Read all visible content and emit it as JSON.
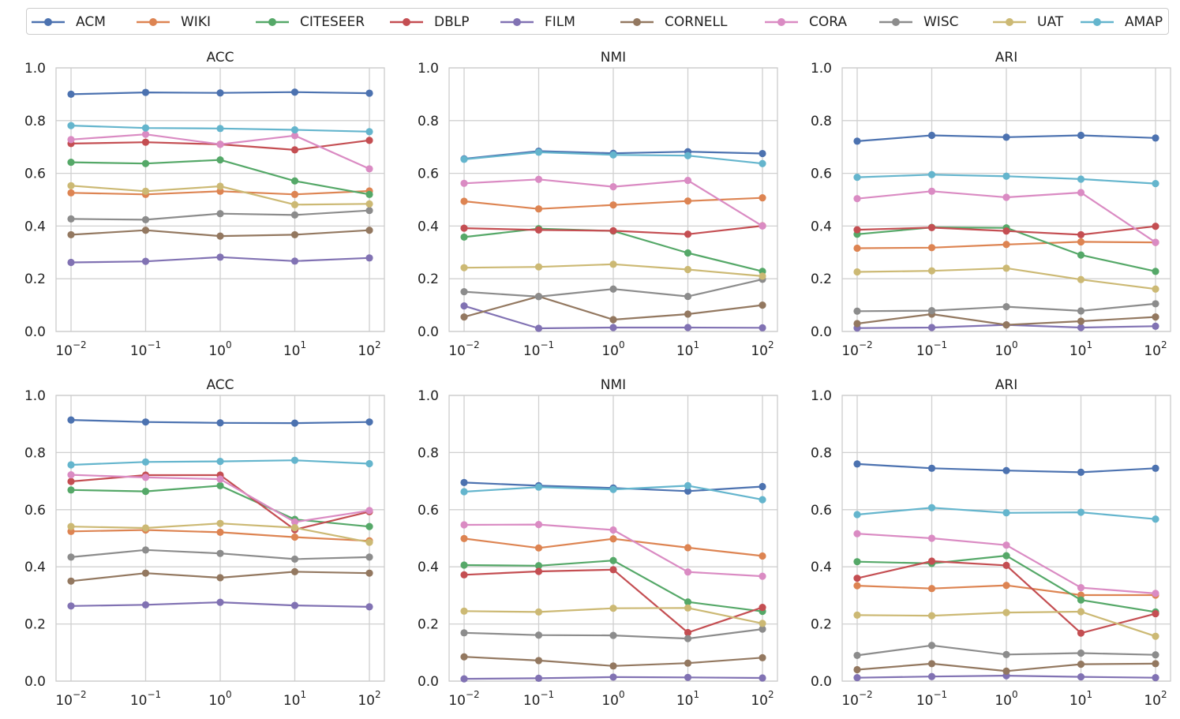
{
  "legend": [
    {
      "name": "ACM",
      "color": "#4c72b0"
    },
    {
      "name": "WIKI",
      "color": "#dd8452"
    },
    {
      "name": "CITESEER",
      "color": "#55a868"
    },
    {
      "name": "DBLP",
      "color": "#c44e52"
    },
    {
      "name": "FILM",
      "color": "#8172b3"
    },
    {
      "name": "CORNELL",
      "color": "#937860"
    },
    {
      "name": "CORA",
      "color": "#da8bc3"
    },
    {
      "name": "WISC",
      "color": "#8c8c8c"
    },
    {
      "name": "UAT",
      "color": "#ccb974"
    },
    {
      "name": "AMAP",
      "color": "#64b5cd"
    }
  ],
  "chart_data": [
    {
      "type": "line",
      "title": "ACC",
      "xscale": "log",
      "x": [
        0.01,
        0.1,
        1,
        10,
        100
      ],
      "xtick_labels": [
        {
          "base": "10",
          "exp": "−2"
        },
        {
          "base": "10",
          "exp": "−1"
        },
        {
          "base": "10",
          "exp": "0"
        },
        {
          "base": "10",
          "exp": "1"
        },
        {
          "base": "10",
          "exp": "2"
        }
      ],
      "ylim": [
        0,
        1
      ],
      "yticks": [
        "0.0",
        "0.2",
        "0.4",
        "0.6",
        "0.8",
        "1.0"
      ],
      "grid": true,
      "series": [
        {
          "name": "ACM",
          "values": [
            0.9,
            0.907,
            0.905,
            0.908,
            0.904
          ]
        },
        {
          "name": "WIKI",
          "values": [
            0.526,
            0.52,
            0.532,
            0.52,
            0.533
          ]
        },
        {
          "name": "CITESEER",
          "values": [
            0.642,
            0.637,
            0.651,
            0.571,
            0.52
          ]
        },
        {
          "name": "DBLP",
          "values": [
            0.713,
            0.718,
            0.71,
            0.689,
            0.725
          ]
        },
        {
          "name": "FILM",
          "values": [
            0.262,
            0.266,
            0.282,
            0.267,
            0.279
          ]
        },
        {
          "name": "CORNELL",
          "values": [
            0.367,
            0.384,
            0.362,
            0.367,
            0.384
          ]
        },
        {
          "name": "CORA",
          "values": [
            0.728,
            0.748,
            0.71,
            0.743,
            0.617
          ]
        },
        {
          "name": "WISC",
          "values": [
            0.427,
            0.424,
            0.447,
            0.442,
            0.459
          ]
        },
        {
          "name": "UAT",
          "values": [
            0.553,
            0.532,
            0.551,
            0.481,
            0.484
          ]
        },
        {
          "name": "AMAP",
          "values": [
            0.781,
            0.772,
            0.77,
            0.765,
            0.758
          ]
        }
      ]
    },
    {
      "type": "line",
      "title": "NMI",
      "xscale": "log",
      "x": [
        0.01,
        0.1,
        1,
        10,
        100
      ],
      "xtick_labels": [
        {
          "base": "10",
          "exp": "−2"
        },
        {
          "base": "10",
          "exp": "−1"
        },
        {
          "base": "10",
          "exp": "0"
        },
        {
          "base": "10",
          "exp": "1"
        },
        {
          "base": "10",
          "exp": "2"
        }
      ],
      "ylim": [
        0,
        1
      ],
      "yticks": [
        "0.0",
        "0.2",
        "0.4",
        "0.6",
        "0.8",
        "1.0"
      ],
      "grid": true,
      "series": [
        {
          "name": "ACM",
          "values": [
            0.655,
            0.684,
            0.676,
            0.682,
            0.675
          ]
        },
        {
          "name": "WIKI",
          "values": [
            0.494,
            0.465,
            0.48,
            0.495,
            0.507
          ]
        },
        {
          "name": "CITESEER",
          "values": [
            0.358,
            0.39,
            0.381,
            0.298,
            0.228
          ]
        },
        {
          "name": "DBLP",
          "values": [
            0.392,
            0.385,
            0.382,
            0.369,
            0.401
          ]
        },
        {
          "name": "FILM",
          "values": [
            0.097,
            0.012,
            0.015,
            0.015,
            0.014
          ]
        },
        {
          "name": "CORNELL",
          "values": [
            0.055,
            0.133,
            0.045,
            0.066,
            0.1
          ]
        },
        {
          "name": "CORA",
          "values": [
            0.562,
            0.577,
            0.549,
            0.573,
            0.4
          ]
        },
        {
          "name": "WISC",
          "values": [
            0.151,
            0.132,
            0.161,
            0.133,
            0.198
          ]
        },
        {
          "name": "UAT",
          "values": [
            0.242,
            0.245,
            0.255,
            0.235,
            0.21
          ]
        },
        {
          "name": "AMAP",
          "values": [
            0.653,
            0.68,
            0.67,
            0.667,
            0.637
          ]
        }
      ]
    },
    {
      "type": "line",
      "title": "ARI",
      "xscale": "log",
      "x": [
        0.01,
        0.1,
        1,
        10,
        100
      ],
      "xtick_labels": [
        {
          "base": "10",
          "exp": "−2"
        },
        {
          "base": "10",
          "exp": "−1"
        },
        {
          "base": "10",
          "exp": "0"
        },
        {
          "base": "10",
          "exp": "1"
        },
        {
          "base": "10",
          "exp": "2"
        }
      ],
      "ylim": [
        0,
        1
      ],
      "yticks": [
        "0.0",
        "0.2",
        "0.4",
        "0.6",
        "0.8",
        "1.0"
      ],
      "grid": true,
      "series": [
        {
          "name": "ACM",
          "values": [
            0.722,
            0.744,
            0.737,
            0.744,
            0.734
          ]
        },
        {
          "name": "WIKI",
          "values": [
            0.316,
            0.318,
            0.33,
            0.34,
            0.338
          ]
        },
        {
          "name": "CITESEER",
          "values": [
            0.369,
            0.395,
            0.393,
            0.29,
            0.228
          ]
        },
        {
          "name": "DBLP",
          "values": [
            0.386,
            0.394,
            0.381,
            0.367,
            0.399
          ]
        },
        {
          "name": "FILM",
          "values": [
            0.013,
            0.015,
            0.025,
            0.015,
            0.02
          ]
        },
        {
          "name": "CORNELL",
          "values": [
            0.03,
            0.066,
            0.025,
            0.039,
            0.055
          ]
        },
        {
          "name": "CORA",
          "values": [
            0.504,
            0.532,
            0.509,
            0.527,
            0.338
          ]
        },
        {
          "name": "WISC",
          "values": [
            0.077,
            0.079,
            0.094,
            0.078,
            0.105
          ]
        },
        {
          "name": "UAT",
          "values": [
            0.226,
            0.23,
            0.24,
            0.197,
            0.161
          ]
        },
        {
          "name": "AMAP",
          "values": [
            0.585,
            0.595,
            0.589,
            0.578,
            0.561
          ]
        }
      ]
    },
    {
      "type": "line",
      "title": "ACC",
      "xscale": "log",
      "x": [
        0.01,
        0.1,
        1,
        10,
        100
      ],
      "xtick_labels": [
        {
          "base": "10",
          "exp": "−2"
        },
        {
          "base": "10",
          "exp": "−1"
        },
        {
          "base": "10",
          "exp": "0"
        },
        {
          "base": "10",
          "exp": "1"
        },
        {
          "base": "10",
          "exp": "2"
        }
      ],
      "ylim": [
        0,
        1
      ],
      "yticks": [
        "0.0",
        "0.2",
        "0.4",
        "0.6",
        "0.8",
        "1.0"
      ],
      "grid": true,
      "series": [
        {
          "name": "ACM",
          "values": [
            0.914,
            0.907,
            0.904,
            0.903,
            0.907
          ]
        },
        {
          "name": "WIKI",
          "values": [
            0.524,
            0.529,
            0.521,
            0.504,
            0.491
          ]
        },
        {
          "name": "CITESEER",
          "values": [
            0.669,
            0.664,
            0.684,
            0.566,
            0.541
          ]
        },
        {
          "name": "DBLP",
          "values": [
            0.699,
            0.721,
            0.721,
            0.53,
            0.593
          ]
        },
        {
          "name": "FILM",
          "values": [
            0.263,
            0.267,
            0.276,
            0.265,
            0.26
          ]
        },
        {
          "name": "CORNELL",
          "values": [
            0.35,
            0.378,
            0.362,
            0.383,
            0.378
          ]
        },
        {
          "name": "CORA",
          "values": [
            0.722,
            0.713,
            0.707,
            0.557,
            0.597
          ]
        },
        {
          "name": "WISC",
          "values": [
            0.434,
            0.459,
            0.447,
            0.427,
            0.434
          ]
        },
        {
          "name": "UAT",
          "values": [
            0.541,
            0.536,
            0.552,
            0.537,
            0.486
          ]
        },
        {
          "name": "AMAP",
          "values": [
            0.757,
            0.767,
            0.769,
            0.773,
            0.761
          ]
        }
      ]
    },
    {
      "type": "line",
      "title": "NMI",
      "xscale": "log",
      "x": [
        0.01,
        0.1,
        1,
        10,
        100
      ],
      "xtick_labels": [
        {
          "base": "10",
          "exp": "−2"
        },
        {
          "base": "10",
          "exp": "−1"
        },
        {
          "base": "10",
          "exp": "0"
        },
        {
          "base": "10",
          "exp": "1"
        },
        {
          "base": "10",
          "exp": "2"
        }
      ],
      "ylim": [
        0,
        1
      ],
      "yticks": [
        "0.0",
        "0.2",
        "0.4",
        "0.6",
        "0.8",
        "1.0"
      ],
      "grid": true,
      "series": [
        {
          "name": "ACM",
          "values": [
            0.695,
            0.684,
            0.676,
            0.665,
            0.681
          ]
        },
        {
          "name": "WIKI",
          "values": [
            0.499,
            0.466,
            0.498,
            0.467,
            0.438
          ]
        },
        {
          "name": "CITESEER",
          "values": [
            0.406,
            0.404,
            0.422,
            0.277,
            0.244
          ]
        },
        {
          "name": "DBLP",
          "values": [
            0.372,
            0.384,
            0.39,
            0.17,
            0.258
          ]
        },
        {
          "name": "FILM",
          "values": [
            0.008,
            0.01,
            0.014,
            0.013,
            0.011
          ]
        },
        {
          "name": "CORNELL",
          "values": [
            0.085,
            0.072,
            0.053,
            0.063,
            0.082
          ]
        },
        {
          "name": "CORA",
          "values": [
            0.547,
            0.548,
            0.529,
            0.382,
            0.367
          ]
        },
        {
          "name": "WISC",
          "values": [
            0.169,
            0.161,
            0.16,
            0.149,
            0.182
          ]
        },
        {
          "name": "UAT",
          "values": [
            0.245,
            0.242,
            0.255,
            0.256,
            0.202
          ]
        },
        {
          "name": "AMAP",
          "values": [
            0.663,
            0.679,
            0.671,
            0.684,
            0.635
          ]
        }
      ]
    },
    {
      "type": "line",
      "title": "ARI",
      "xscale": "log",
      "x": [
        0.01,
        0.1,
        1,
        10,
        100
      ],
      "xtick_labels": [
        {
          "base": "10",
          "exp": "−2"
        },
        {
          "base": "10",
          "exp": "−1"
        },
        {
          "base": "10",
          "exp": "0"
        },
        {
          "base": "10",
          "exp": "1"
        },
        {
          "base": "10",
          "exp": "2"
        }
      ],
      "ylim": [
        0,
        1
      ],
      "yticks": [
        "0.0",
        "0.2",
        "0.4",
        "0.6",
        "0.8",
        "1.0"
      ],
      "grid": true,
      "series": [
        {
          "name": "ACM",
          "values": [
            0.76,
            0.745,
            0.737,
            0.731,
            0.745
          ]
        },
        {
          "name": "WIKI",
          "values": [
            0.334,
            0.324,
            0.335,
            0.301,
            0.301
          ]
        },
        {
          "name": "CITESEER",
          "values": [
            0.418,
            0.412,
            0.439,
            0.284,
            0.242
          ]
        },
        {
          "name": "DBLP",
          "values": [
            0.36,
            0.42,
            0.405,
            0.168,
            0.236
          ]
        },
        {
          "name": "FILM",
          "values": [
            0.012,
            0.016,
            0.019,
            0.015,
            0.012
          ]
        },
        {
          "name": "CORNELL",
          "values": [
            0.04,
            0.061,
            0.035,
            0.059,
            0.061
          ]
        },
        {
          "name": "CORA",
          "values": [
            0.516,
            0.5,
            0.476,
            0.327,
            0.307
          ]
        },
        {
          "name": "WISC",
          "values": [
            0.09,
            0.125,
            0.093,
            0.098,
            0.092
          ]
        },
        {
          "name": "UAT",
          "values": [
            0.231,
            0.229,
            0.24,
            0.243,
            0.157
          ]
        },
        {
          "name": "AMAP",
          "values": [
            0.583,
            0.607,
            0.589,
            0.591,
            0.567
          ]
        }
      ]
    }
  ]
}
